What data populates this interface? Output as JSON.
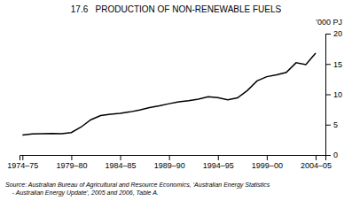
{
  "chart_data": {
    "type": "line",
    "title": "17.6   PRODUCTION OF NON-RENEWABLE FUELS",
    "y_label": "’000 PJ",
    "annotations": [
      "Source: Australian Bureau of Agricultural and Resource Economics, ‘Australian Energy Statistics",
      "    - Australian Energy Update’, 2005 and 2006, Table A."
    ],
    "x": [
      0,
      1,
      2,
      3,
      4,
      5,
      6,
      7,
      8,
      9,
      10,
      11,
      12,
      13,
      14,
      15,
      16,
      17,
      18,
      19,
      20,
      21,
      22,
      23,
      24,
      25,
      26,
      27,
      28,
      29,
      30
    ],
    "values": [
      3.3,
      3.45,
      3.5,
      3.55,
      3.5,
      3.7,
      4.6,
      5.8,
      6.5,
      6.7,
      6.85,
      7.1,
      7.4,
      7.8,
      8.1,
      8.45,
      8.75,
      8.95,
      9.2,
      9.6,
      9.45,
      9.1,
      9.4,
      10.6,
      12.2,
      12.9,
      13.2,
      13.6,
      15.2,
      14.9,
      16.8
    ],
    "color": "#000000",
    "xlim": [
      -0.3,
      31
    ],
    "xticks": [
      {
        "value": 0,
        "label": "1974–75"
      },
      {
        "value": 5,
        "label": "1979–80"
      },
      {
        "value": 10,
        "label": "1984–85"
      },
      {
        "value": 15,
        "label": "1989–90"
      },
      {
        "value": 20,
        "label": "1994–95"
      },
      {
        "value": 25,
        "label": "1999–00"
      },
      {
        "value": 30,
        "label": "2004–05"
      }
    ],
    "ylim": [
      0,
      20
    ],
    "yticks": [
      0,
      5,
      10,
      15,
      20
    ]
  }
}
